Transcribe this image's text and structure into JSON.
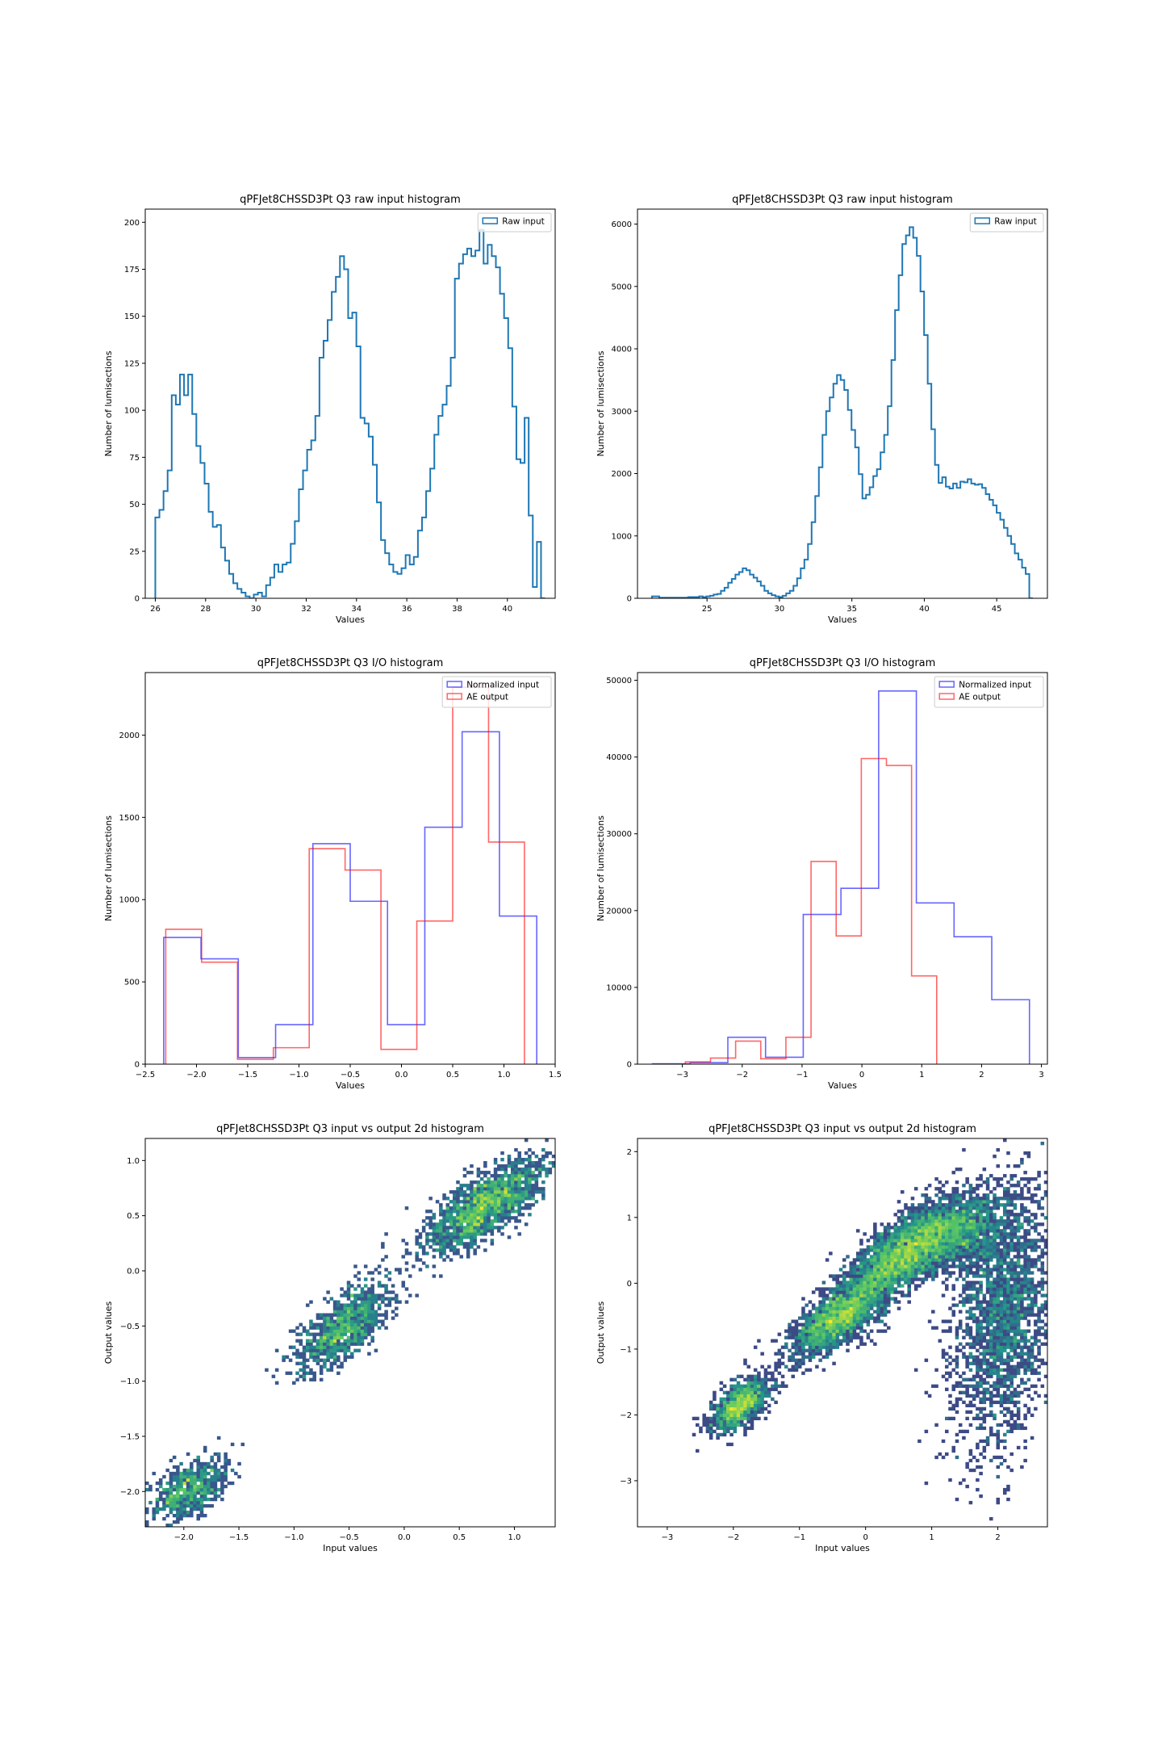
{
  "colors": {
    "raw": "#1f77b4",
    "normalized": "#0000ff",
    "ae": "#ff0000",
    "viridis": [
      "#440154",
      "#3b528b",
      "#21918c",
      "#5ec962",
      "#fde725"
    ]
  },
  "chart_data": [
    {
      "type": "histogram",
      "id": "raw-left",
      "title": "qPFJet8CHSSD3Pt Q3 raw input histogram",
      "xlabel": "Values",
      "ylabel": "Number of lumisections",
      "xlim": [
        25.6,
        41.9
      ],
      "ylim": [
        0,
        207
      ],
      "xticks": [
        26,
        28,
        30,
        32,
        34,
        36,
        38,
        40,
        42
      ],
      "yticks": [
        0,
        25,
        50,
        75,
        100,
        125,
        150,
        175,
        200
      ],
      "legend": "upper right",
      "series": [
        {
          "name": "Raw input",
          "color": "#1f77b4",
          "edges_range": [
            26.0,
            41.5
          ],
          "counts": [
            43,
            47,
            57,
            68,
            108,
            103,
            119,
            108,
            119,
            98,
            81,
            72,
            61,
            46,
            38,
            39,
            27,
            20,
            13,
            8,
            5,
            3,
            1,
            0,
            2,
            3,
            1,
            7,
            11,
            18,
            14,
            18,
            19,
            29,
            41,
            58,
            68,
            79,
            84,
            97,
            128,
            137,
            148,
            163,
            171,
            182,
            175,
            149,
            152,
            134,
            96,
            93,
            86,
            71,
            51,
            31,
            24,
            18,
            14,
            13,
            16,
            23,
            18,
            22,
            36,
            43,
            57,
            69,
            87,
            97,
            103,
            113,
            128,
            170,
            178,
            183,
            186,
            182,
            185,
            196,
            178,
            188,
            182,
            176,
            162,
            149,
            133,
            102,
            74,
            72,
            96,
            44,
            6,
            30,
            0
          ]
        }
      ]
    },
    {
      "type": "histogram",
      "id": "raw-right",
      "title": "qPFJet8CHSSD3Pt Q3 raw input histogram",
      "xlabel": "Values",
      "ylabel": "Number of lumisections",
      "xlim": [
        20.2,
        48.5
      ],
      "ylim": [
        0,
        6240
      ],
      "xticks": [
        20,
        25,
        30,
        35,
        40,
        45
      ],
      "yticks": [
        0,
        1000,
        2000,
        3000,
        4000,
        5000,
        6000
      ],
      "legend": "upper right",
      "series": [
        {
          "name": "Raw input",
          "color": "#1f77b4",
          "edges_range": [
            21.2,
            47.5
          ],
          "counts": [
            30,
            30,
            10,
            10,
            10,
            10,
            10,
            10,
            10,
            10,
            20,
            20,
            20,
            30,
            20,
            30,
            40,
            60,
            70,
            120,
            170,
            250,
            310,
            380,
            420,
            480,
            450,
            380,
            330,
            270,
            200,
            120,
            80,
            50,
            30,
            20,
            40,
            80,
            120,
            200,
            320,
            480,
            620,
            870,
            1220,
            1640,
            2100,
            2620,
            3000,
            3220,
            3440,
            3580,
            3500,
            3340,
            3020,
            2700,
            2420,
            1990,
            1600,
            1660,
            1780,
            1960,
            2070,
            2340,
            2620,
            3080,
            3820,
            4620,
            5180,
            5680,
            5820,
            5950,
            5780,
            5490,
            4920,
            4220,
            3440,
            2710,
            2140,
            1850,
            1940,
            1790,
            1760,
            1840,
            1770,
            1870,
            1860,
            1910,
            1840,
            1820,
            1830,
            1770,
            1670,
            1580,
            1490,
            1370,
            1260,
            1130,
            1000,
            870,
            720,
            620,
            490,
            390,
            0
          ]
        }
      ]
    },
    {
      "type": "histogram",
      "id": "io-left",
      "title": "qPFJet8CHSSD3Pt Q3 I/O histogram",
      "xlabel": "Values",
      "ylabel": "Number of lumisections",
      "xlim": [
        -2.5,
        1.5
      ],
      "ylim": [
        0,
        2380
      ],
      "xticks": [
        -2.5,
        -2.0,
        -1.5,
        -1.0,
        -0.5,
        0.0,
        0.5,
        1.0,
        1.5
      ],
      "xticklabels": [
        "−2.5",
        "−2.0",
        "−1.5",
        "−1.0",
        "−0.5",
        "0.0",
        "0.5",
        "1.0",
        "1.5"
      ],
      "yticks": [
        0,
        500,
        1000,
        1500,
        2000
      ],
      "legend": "upper right",
      "series": [
        {
          "name": "Normalized input",
          "color": "#0000ff",
          "edges": [
            -2.32,
            -1.956,
            -1.592,
            -1.228,
            -0.864,
            -0.5,
            -0.136,
            0.228,
            0.592,
            0.956,
            1.32
          ],
          "counts": [
            770,
            640,
            40,
            240,
            1340,
            990,
            240,
            1440,
            2020,
            900
          ]
        },
        {
          "name": "AE output",
          "color": "#ff0000",
          "edges": [
            -2.3,
            -1.95,
            -1.6,
            -1.25,
            -0.9,
            -0.55,
            -0.2,
            0.15,
            0.5,
            0.85,
            1.2
          ],
          "counts": [
            820,
            620,
            30,
            100,
            1310,
            1180,
            90,
            870,
            2290,
            1350
          ]
        }
      ]
    },
    {
      "type": "histogram",
      "id": "io-right",
      "title": "qPFJet8CHSSD3Pt Q3 I/O histogram",
      "xlabel": "Values",
      "ylabel": "Number of lumisections",
      "xlim": [
        -3.75,
        3.1
      ],
      "ylim": [
        0,
        51000
      ],
      "xticks": [
        -3,
        -2,
        -1,
        0,
        1,
        2,
        3
      ],
      "xticklabels": [
        "−3",
        "−2",
        "−1",
        "0",
        "1",
        "2",
        "3"
      ],
      "yticks": [
        0,
        10000,
        20000,
        30000,
        40000,
        50000
      ],
      "legend": "upper right",
      "series": [
        {
          "name": "Normalized input",
          "color": "#0000ff",
          "edges": [
            -3.5,
            -2.87,
            -2.24,
            -1.61,
            -0.98,
            -0.35,
            0.28,
            0.91,
            1.54,
            2.17,
            2.8
          ],
          "counts": [
            50,
            200,
            3500,
            900,
            19500,
            22900,
            48600,
            21000,
            16600,
            8400
          ]
        },
        {
          "name": "AE output",
          "color": "#ff0000",
          "edges": [
            -2.95,
            -2.53,
            -2.11,
            -1.69,
            -1.27,
            -0.85,
            -0.43,
            -0.01,
            0.41,
            0.83,
            1.25
          ],
          "counts": [
            300,
            800,
            3000,
            700,
            3500,
            26400,
            16700,
            39800,
            38900,
            11500
          ]
        }
      ]
    },
    {
      "type": "heatmap",
      "id": "io2d-left",
      "title": "qPFJet8CHSSD3Pt Q3 input vs output 2d histogram",
      "xlabel": "Input values",
      "ylabel": "Output values",
      "xlim": [
        -2.35,
        1.37
      ],
      "ylim": [
        -2.32,
        1.2
      ],
      "xticks": [
        -2.0,
        -1.5,
        -1.0,
        -0.5,
        0.0,
        0.5,
        1.0
      ],
      "xticklabels": [
        "−2.0",
        "−1.5",
        "−1.0",
        "−0.5",
        "0.0",
        "0.5",
        "1.0"
      ],
      "yticks": [
        -2.0,
        -1.5,
        -1.0,
        -0.5,
        0.0,
        0.5,
        1.0
      ],
      "yticklabels": [
        "−2.0",
        "−1.5",
        "−1.0",
        "−0.5",
        "0.0",
        "0.5",
        "1.0"
      ],
      "colormap": "viridis",
      "clusters": [
        {
          "cx": -1.95,
          "cy": -1.98,
          "sx": 0.18,
          "sy": 0.14,
          "rho": 0.55,
          "n": 650
        },
        {
          "cx": -0.55,
          "cy": -0.5,
          "sx": 0.22,
          "sy": 0.2,
          "rho": 0.7,
          "n": 1000
        },
        {
          "cx": 0.75,
          "cy": 0.6,
          "sx": 0.28,
          "sy": 0.22,
          "rho": 0.75,
          "n": 1700
        }
      ]
    },
    {
      "type": "heatmap",
      "id": "io2d-right",
      "title": "qPFJet8CHSSD3Pt Q3 input vs output 2d histogram",
      "xlabel": "Input values",
      "ylabel": "Output values",
      "xlim": [
        -3.45,
        2.75
      ],
      "ylim": [
        -3.7,
        2.2
      ],
      "xticks": [
        -3,
        -2,
        -1,
        0,
        1,
        2
      ],
      "xticklabels": [
        "−3",
        "−2",
        "−1",
        "0",
        "1",
        "2"
      ],
      "yticks": [
        -3,
        -2,
        -1,
        0,
        1,
        2
      ],
      "yticklabels": [
        "−3",
        "−2",
        "−1",
        "0",
        "1",
        "2"
      ],
      "colormap": "viridis",
      "clusters": [
        {
          "cx": -1.9,
          "cy": -1.85,
          "sx": 0.22,
          "sy": 0.2,
          "rho": 0.6,
          "n": 1200
        },
        {
          "cx": -0.4,
          "cy": -0.5,
          "sx": 0.35,
          "sy": 0.3,
          "rho": 0.7,
          "n": 2200
        },
        {
          "cx": 0.6,
          "cy": 0.45,
          "sx": 0.45,
          "sy": 0.35,
          "rho": 0.7,
          "n": 3200
        },
        {
          "cx": 2.1,
          "cy": -0.5,
          "sx": 0.4,
          "sy": 1.0,
          "rho": 0.3,
          "n": 2400
        },
        {
          "cx": 1.4,
          "cy": 0.8,
          "sx": 0.4,
          "sy": 0.3,
          "rho": 0.2,
          "n": 1400
        }
      ]
    }
  ]
}
